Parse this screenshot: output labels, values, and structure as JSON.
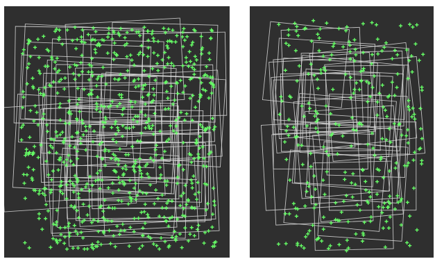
{
  "figure": {
    "background": "#ffffff",
    "panels": [
      {
        "id": "left",
        "background": "#2f2f2f",
        "frame_color": "#dcdcdc",
        "keypoint_color": "#66ff66",
        "frame_count": 40,
        "keypoint_count": 760,
        "keypoint_density": "dense"
      },
      {
        "id": "right",
        "background": "#2f2f2f",
        "frame_color": "#dcdcdc",
        "keypoint_color": "#66ff66",
        "frame_count": 30,
        "keypoint_count": 300,
        "keypoint_density": "sparse"
      }
    ]
  }
}
